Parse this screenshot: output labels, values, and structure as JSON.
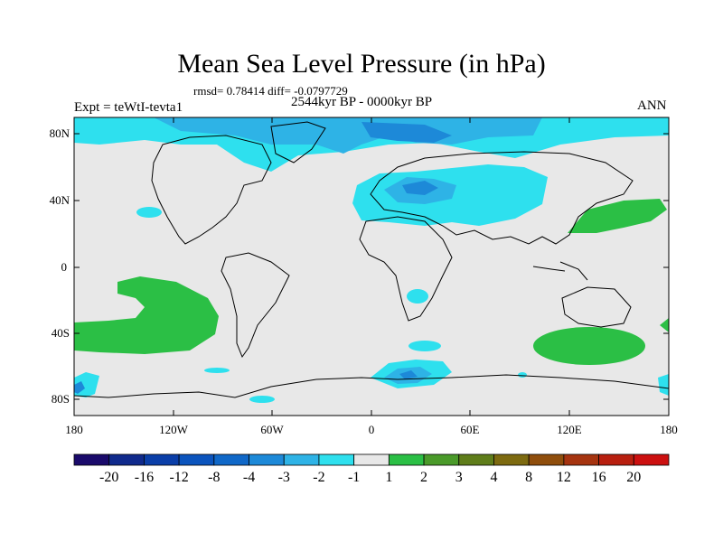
{
  "title": "Mean Sea Level Pressure (in hPa)",
  "stats": "rmsd= 0.78414 diff= -0.0797729",
  "experiment": "Expt = teWtI-tevta1",
  "period": "2544kyr BP - 0000kyr BP",
  "season": "ANN",
  "lat_labels": [
    "80N",
    "40N",
    "0",
    "40S",
    "80S"
  ],
  "lon_labels": [
    "180",
    "120W",
    "60W",
    "0",
    "60E",
    "120E",
    "180"
  ],
  "colorbar": {
    "labels": [
      "-20",
      "-16",
      "-12",
      "-8",
      "-4",
      "-3",
      "-2",
      "-1",
      "1",
      "2",
      "3",
      "4",
      "8",
      "12",
      "16",
      "20"
    ],
    "colors": [
      "#1a0a6b",
      "#102a8c",
      "#0a3ea8",
      "#0b54bd",
      "#1068c8",
      "#1d89d8",
      "#2eb3e6",
      "#2ee0ee",
      "#e8e8e8",
      "#2bbf45",
      "#4a9a2a",
      "#5f7d1a",
      "#7d6a10",
      "#8f4e0c",
      "#a63410",
      "#b81f0f",
      "#cc1010"
    ]
  },
  "colors": {
    "background": "#e8e8e8",
    "neg_light": "#2ee0ee",
    "neg_mid": "#2eb3e6",
    "neg_dark": "#1d89d8",
    "pos": "#2bbf45"
  }
}
